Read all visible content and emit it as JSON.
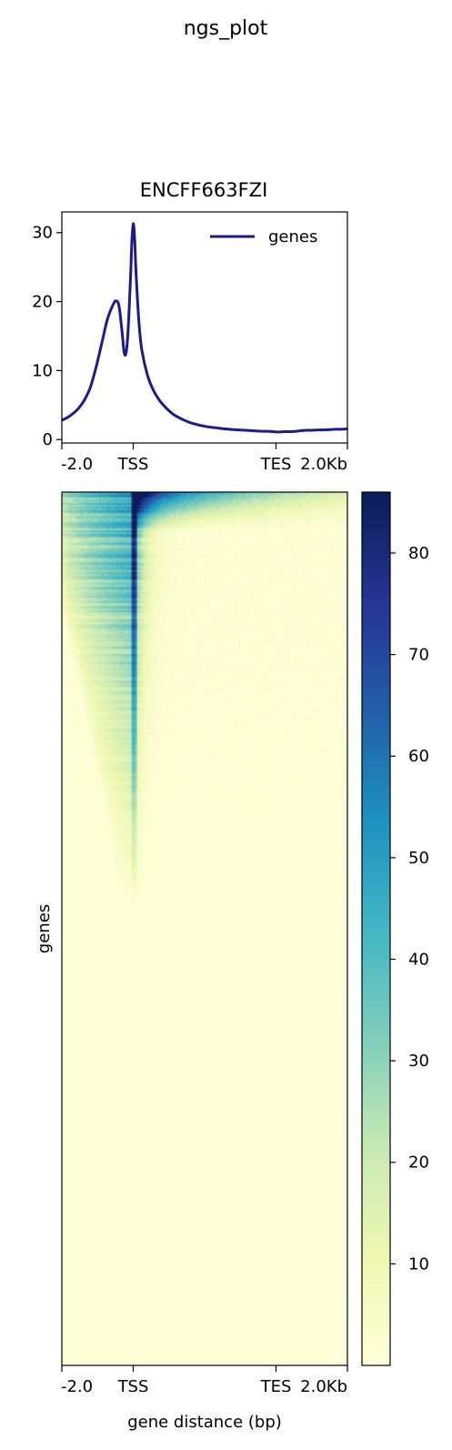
{
  "figure": {
    "suptitle": "ngs_plot"
  },
  "chart_data": [
    {
      "type": "line",
      "title": "ENCFF663FZI",
      "xlabel": "",
      "ylabel": "",
      "ylim": [
        -0.5,
        33
      ],
      "x_tick_labels": [
        "-2.0",
        "TSS",
        "TES",
        "2.0Kb"
      ],
      "y_ticks": [
        0,
        10,
        20,
        30
      ],
      "legend": {
        "position": "top-right"
      },
      "grid": false,
      "x_domain": [
        0,
        100
      ],
      "x_marks": {
        "start": 0,
        "tss": 25,
        "tes": 75,
        "end": 100
      },
      "series": [
        {
          "name": "genes",
          "color": "#1c1b8b",
          "x": [
            0,
            2,
            4,
            6,
            8,
            10,
            12,
            14,
            16,
            18,
            19,
            20,
            21,
            22,
            23,
            24,
            24.5,
            25,
            25.5,
            26,
            27,
            28,
            30,
            32,
            34,
            36,
            38,
            40,
            44,
            48,
            52,
            56,
            60,
            64,
            68,
            70,
            72,
            74,
            75,
            76,
            78,
            80,
            82,
            84,
            86,
            88,
            90,
            92,
            94,
            96,
            98,
            100
          ],
          "y": [
            2.8,
            3.2,
            3.8,
            4.6,
            5.8,
            7.6,
            10.5,
            14,
            17.5,
            19.6,
            20.1,
            19.4,
            16,
            12.3,
            14.5,
            23,
            28.5,
            31.3,
            29,
            24,
            17,
            13,
            9.3,
            7.2,
            5.8,
            4.8,
            4.0,
            3.4,
            2.6,
            2.1,
            1.8,
            1.6,
            1.45,
            1.35,
            1.25,
            1.2,
            1.2,
            1.15,
            1.1,
            1.1,
            1.15,
            1.15,
            1.2,
            1.3,
            1.35,
            1.35,
            1.4,
            1.4,
            1.45,
            1.5,
            1.5,
            1.55
          ]
        }
      ]
    },
    {
      "type": "heatmap",
      "title": "",
      "xlabel": "gene distance (bp)",
      "ylabel": "genes",
      "x_tick_labels": [
        "-2.0",
        "TSS",
        "TES",
        "2.0Kb"
      ],
      "colormap": "YlGnBu",
      "colormap_stops": [
        "#ffffd9",
        "#edf8b1",
        "#c7e9b4",
        "#7fcdbb",
        "#41b6c4",
        "#1d91c0",
        "#225ea8",
        "#253494",
        "#081d58"
      ],
      "colorbar": {
        "range": [
          0,
          86
        ],
        "ticks": [
          10,
          20,
          30,
          40,
          50,
          60,
          70,
          80
        ]
      },
      "pattern": {
        "description": "genes sorted by signal; strong TSS-centred enrichment in the top ~45% of rows, fading to background",
        "tss_peak_value": 60,
        "upstream_plateau_value": 48,
        "top_row_downstream_value": 84,
        "background_value": 1
      }
    }
  ]
}
